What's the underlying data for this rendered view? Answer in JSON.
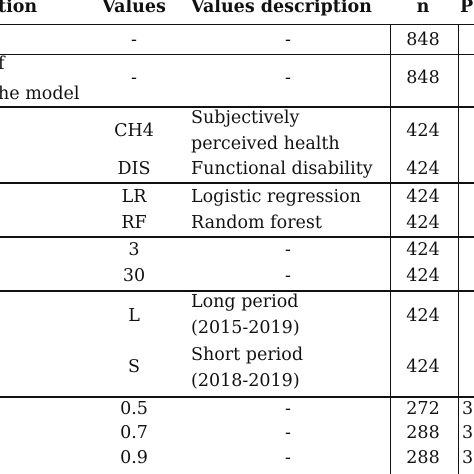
{
  "header": {
    "col1": "tion",
    "col2": "Values",
    "col3": "Values description",
    "col4": "n",
    "col5": "P"
  },
  "rows": [
    {
      "c1": "",
      "c2": "-",
      "c3": "-",
      "c4": "848",
      "c5": ""
    },
    {
      "c1": "f",
      "c1b": "he model",
      "c2": "-",
      "c3": "-",
      "c4": "848",
      "c5": ""
    },
    {
      "c2": "CH4",
      "c3a": "Subjectively",
      "c3b": "perceived health",
      "c4": "424"
    },
    {
      "c2": "DIS",
      "c3": "Functional disability",
      "c4": "424"
    },
    {
      "c2": "LR",
      "c3": "Logistic regression",
      "c4": "424"
    },
    {
      "c2": "RF",
      "c3": "Random forest",
      "c4": "424"
    },
    {
      "c2": "3",
      "c3": "-",
      "c4": "424"
    },
    {
      "c2": "30",
      "c3": "-",
      "c4": "424"
    },
    {
      "c2": "L",
      "c3a": "Long period",
      "c3b": "(2015-2019)",
      "c4": "424"
    },
    {
      "c2": "S",
      "c3a": "Short period",
      "c3b": "(2018-2019)",
      "c4": "424"
    },
    {
      "c2": "0.5",
      "c3": "-",
      "c4": "272",
      "c5": "3"
    },
    {
      "c2": "0.7",
      "c3": "-",
      "c4": "288",
      "c5": "3"
    },
    {
      "c2": "0.9",
      "c3": "-",
      "c4": "288",
      "c5": "3"
    }
  ]
}
